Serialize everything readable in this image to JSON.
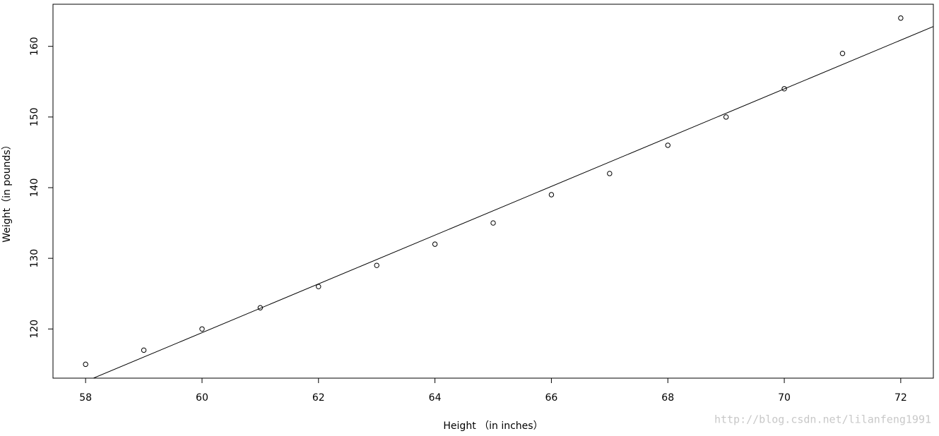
{
  "chart_data": {
    "type": "scatter",
    "x_label": "Height （in inches）",
    "y_label": "Weight（in pounds）",
    "x": [
      58,
      59,
      60,
      61,
      62,
      63,
      64,
      65,
      66,
      67,
      68,
      69,
      70,
      71,
      72
    ],
    "series": [
      {
        "values": [
          115,
          117,
          120,
          123,
          126,
          129,
          132,
          135,
          139,
          142,
          146,
          150,
          154,
          159,
          164
        ],
        "color": "#000000"
      }
    ],
    "fit": {
      "intercept": -87.52,
      "slope": 3.45,
      "color": "#000000"
    },
    "xlim": [
      57.44,
      72.56
    ],
    "ylim": [
      113.04,
      165.96
    ],
    "xticks": [
      58,
      60,
      62,
      64,
      66,
      68,
      70,
      72
    ],
    "yticks": [
      120,
      130,
      140,
      150,
      160
    ],
    "grid": false,
    "watermark": "http://blog.csdn.net/lilanfeng1991"
  }
}
